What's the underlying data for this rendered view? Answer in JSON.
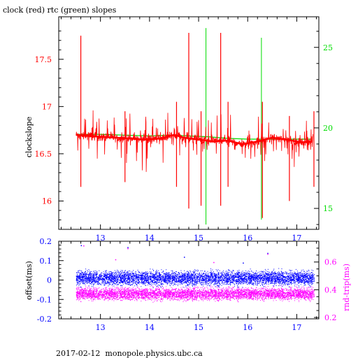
{
  "title": "clock (red) rtc (green) slopes",
  "footer": "2017-02-12  monopole.physics.ubc.ca",
  "colors": {
    "clock": "#ff0000",
    "rtc": "#00dd00",
    "offset": "#0000ff",
    "roundtrip": "#ff00ff",
    "frame": "#000000"
  },
  "chart_data": [
    {
      "type": "line",
      "title": "clock (red) rtc (green) slopes",
      "ylabel": "clockslope",
      "y2label": "",
      "xlim": [
        12.15,
        17.45
      ],
      "ylim": [
        15.7,
        17.95
      ],
      "y2lim": [
        13.7,
        26.9
      ],
      "x_ticks": [
        13,
        14,
        15,
        16,
        17
      ],
      "y_ticks": [
        16,
        16.5,
        17,
        17.5
      ],
      "y2_ticks": [
        15,
        20,
        25
      ],
      "grid": false,
      "series": [
        {
          "name": "clock",
          "axis": "left",
          "baseline": [
            [
              12.5,
              16.7
            ],
            [
              12.7,
              16.69
            ],
            [
              13.0,
              16.68
            ],
            [
              13.3,
              16.67
            ],
            [
              13.6,
              16.66
            ],
            [
              13.9,
              16.65
            ],
            [
              14.2,
              16.66
            ],
            [
              14.5,
              16.7
            ],
            [
              14.7,
              16.67
            ],
            [
              15.0,
              16.65
            ],
            [
              15.3,
              16.63
            ],
            [
              15.6,
              16.64
            ],
            [
              15.9,
              16.6
            ],
            [
              16.2,
              16.63
            ],
            [
              16.5,
              16.67
            ],
            [
              16.8,
              16.65
            ],
            [
              17.1,
              16.62
            ],
            [
              17.3,
              16.63
            ]
          ],
          "spikes": [
            [
              12.6,
              17.75,
              16.15
            ],
            [
              13.5,
              16.95,
              16.2
            ],
            [
              14.55,
              17.05,
              16.15
            ],
            [
              14.8,
              17.78,
              15.92
            ],
            [
              15.05,
              16.95,
              15.95
            ],
            [
              15.45,
              17.78,
              15.95
            ],
            [
              15.6,
              17.05,
              16.15
            ],
            [
              16.3,
              17.05,
              15.82
            ],
            [
              16.85,
              16.9,
              16.0
            ],
            [
              17.35,
              16.95,
              16.15
            ]
          ]
        },
        {
          "name": "rtc",
          "axis": "right",
          "baseline": [
            [
              12.5,
              19.6
            ],
            [
              13.0,
              19.6
            ],
            [
              13.5,
              19.55
            ],
            [
              14.0,
              19.5
            ],
            [
              14.4,
              19.55
            ],
            [
              14.8,
              19.5
            ],
            [
              15.2,
              19.45
            ],
            [
              15.6,
              19.35
            ],
            [
              16.0,
              19.3
            ],
            [
              16.5,
              19.3
            ],
            [
              17.0,
              19.3
            ],
            [
              17.3,
              19.3
            ]
          ],
          "spikes": [
            [
              15.15,
              26.2,
              14.0
            ],
            [
              16.28,
              25.6,
              14.3
            ]
          ]
        }
      ]
    },
    {
      "type": "scatter",
      "ylabel": "offset(ms)",
      "y2label": "rnd-trip(ms)",
      "xlim": [
        12.15,
        17.45
      ],
      "ylim": [
        -0.2,
        0.2
      ],
      "y2lim": [
        0.19,
        0.75
      ],
      "x_ticks": [
        13,
        14,
        15,
        16,
        17
      ],
      "y_ticks": [
        -0.2,
        -0.1,
        0,
        0.1,
        0.2
      ],
      "y2_ticks": [
        0.2,
        0.4,
        0.6
      ],
      "grid": false,
      "series": [
        {
          "name": "offset",
          "axis": "left",
          "center": 0.01,
          "spread": 0.025,
          "x_range": [
            12.5,
            17.35
          ]
        },
        {
          "name": "rnd-trip",
          "axis": "right",
          "center": 0.37,
          "spread": 0.03,
          "x_range": [
            12.5,
            17.35
          ]
        }
      ]
    }
  ]
}
